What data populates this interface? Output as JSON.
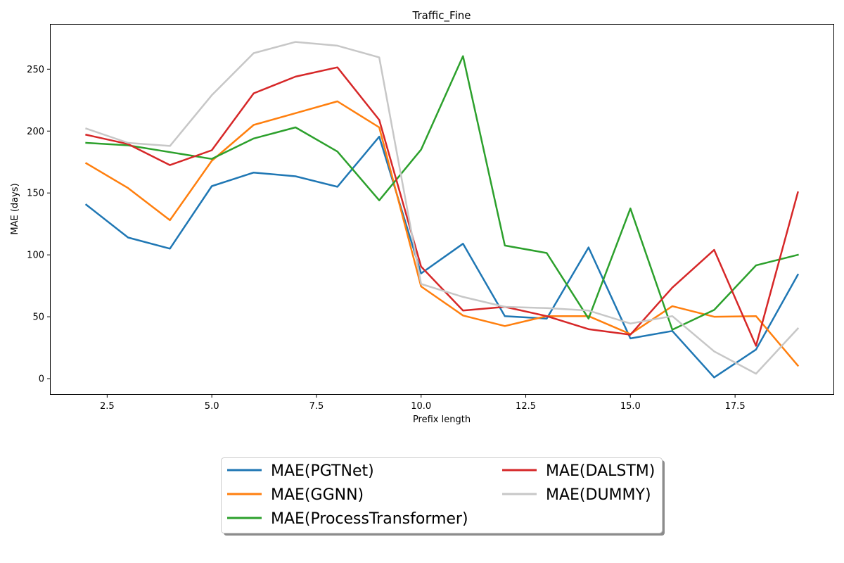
{
  "chart_data": {
    "type": "line",
    "title": "Traffic_Fine",
    "xlabel": "Prefix length",
    "ylabel": "MAE (days)",
    "xlim": [
      1.15,
      19.85
    ],
    "ylim": [
      -12.5,
      286
    ],
    "xticks": [
      2.5,
      5.0,
      7.5,
      10.0,
      12.5,
      15.0,
      17.5
    ],
    "xtick_labels": [
      "2.5",
      "5.0",
      "7.5",
      "10.0",
      "12.5",
      "15.0",
      "17.5"
    ],
    "yticks": [
      0,
      50,
      100,
      150,
      200,
      250
    ],
    "ytick_labels": [
      "0",
      "50",
      "100",
      "150",
      "200",
      "250"
    ],
    "grid": false,
    "legend_placement": "bottom-center",
    "x": [
      2,
      3,
      4,
      5,
      6,
      7,
      8,
      9,
      10,
      11,
      12,
      13,
      14,
      15,
      16,
      17,
      18,
      19
    ],
    "series": [
      {
        "name": "MAE(PGTNet)",
        "color": "#1f77b4",
        "values": [
          140.5,
          114,
          105,
          155.5,
          166.5,
          163.5,
          155,
          195.5,
          85,
          109,
          50.5,
          48.5,
          106,
          32.5,
          38.5,
          1,
          23.5,
          84
        ]
      },
      {
        "name": "MAE(GGNN)",
        "color": "#ff7f0e",
        "values": [
          174,
          154,
          128,
          176,
          205,
          214.5,
          224,
          203,
          74.5,
          51,
          42.5,
          50.5,
          50.5,
          36,
          58.5,
          50,
          50.5,
          10.5
        ]
      },
      {
        "name": "MAE(ProcessTransformer)",
        "color": "#2ca02c",
        "values": [
          190.5,
          188.5,
          183,
          177.5,
          194,
          203,
          183.5,
          144,
          185,
          260.5,
          107.5,
          101.5,
          48.5,
          137.5,
          39.5,
          55.5,
          91.5,
          100
        ]
      },
      {
        "name": "MAE(DALSTM)",
        "color": "#d62728",
        "values": [
          197,
          189.5,
          172.5,
          184.5,
          230.5,
          244,
          251.5,
          209,
          90.5,
          55,
          58,
          50.5,
          40,
          35.5,
          73.5,
          104,
          26.5,
          150.5
        ]
      },
      {
        "name": "MAE(DUMMY)",
        "color": "#c7c7c7",
        "values": [
          202,
          190.5,
          188,
          229,
          263,
          272,
          269,
          259.5,
          76.5,
          66,
          58,
          57,
          55,
          44.5,
          50.5,
          22,
          4,
          40.5
        ]
      }
    ]
  }
}
